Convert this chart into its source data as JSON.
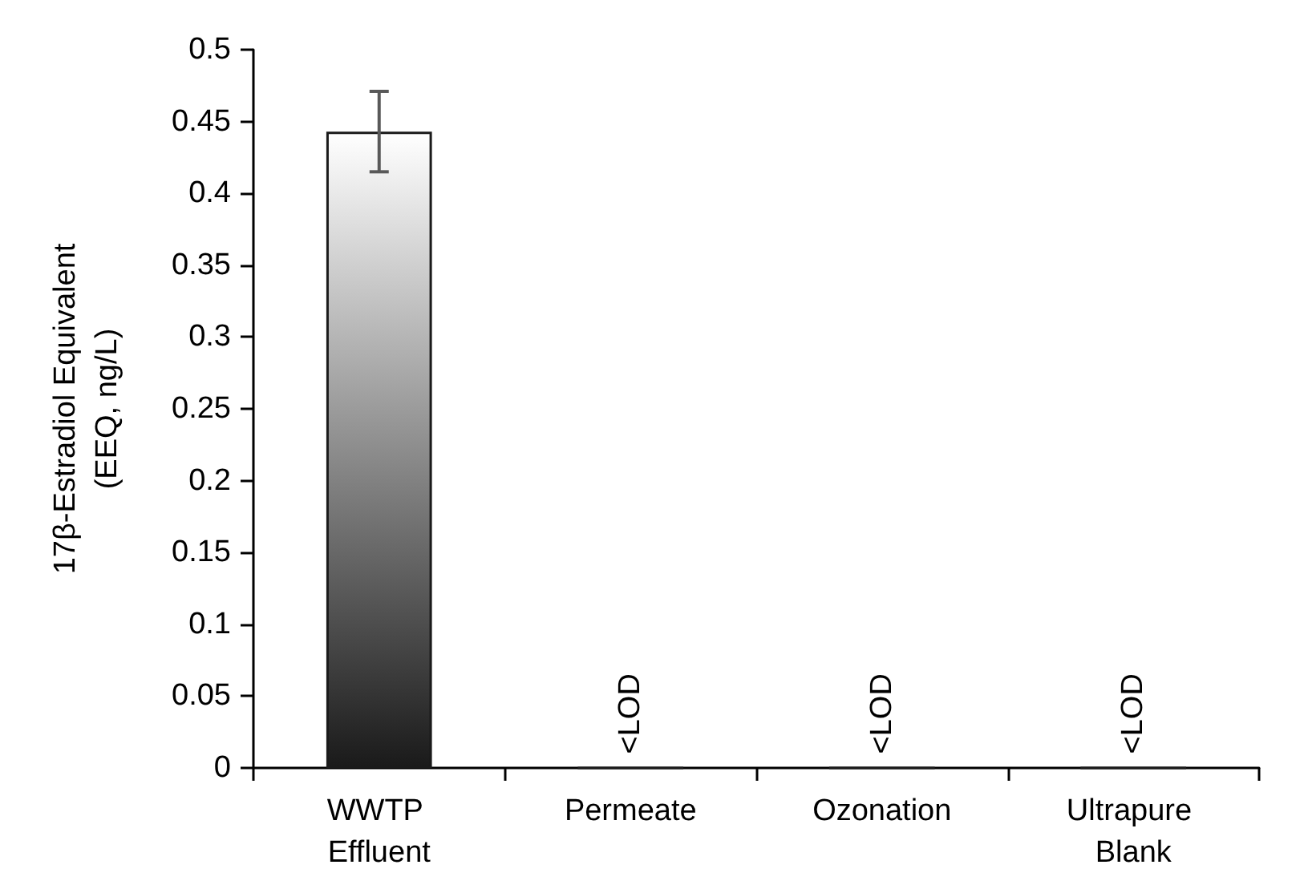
{
  "chart_data": {
    "type": "bar",
    "ylabel": "17β-Estradiol Equivalent\n(EEQ, ng/L)",
    "categories": [
      "WWTP Effluent",
      "Permeate",
      "Ozonation",
      "Ultrapure Blank"
    ],
    "values": [
      0.443,
      0,
      0,
      0
    ],
    "errors": [
      0.028,
      null,
      null,
      null
    ],
    "value_labels": [
      null,
      "<LOD",
      "<LOD",
      "<LOD"
    ],
    "color": "#1a1a1a",
    "ylim": [
      0,
      0.5
    ],
    "yticks": [
      0,
      0.05,
      0.1,
      0.15,
      0.2,
      0.25,
      0.3,
      0.35,
      0.4,
      0.45,
      0.5
    ],
    "grid": false
  }
}
